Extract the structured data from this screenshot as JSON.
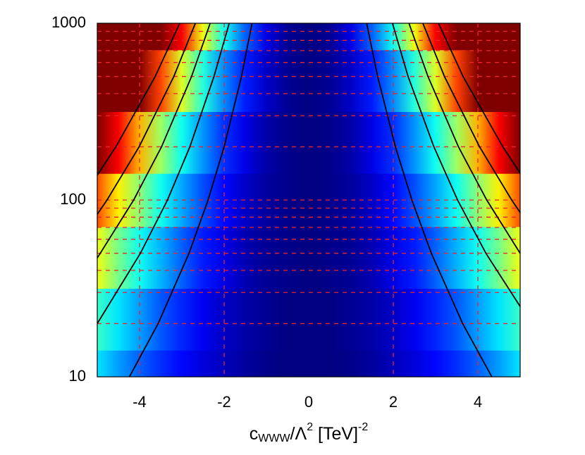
{
  "chart_data": {
    "type": "heatmap",
    "xlabel": {
      "base": "c",
      "sub": "WWW",
      "mid": "/Λ",
      "sup": "2",
      "tail": " [TeV]",
      "sup2": "-2"
    },
    "xlim": [
      -5,
      5
    ],
    "ylim": [
      10,
      1000
    ],
    "ylog": true,
    "xticks": [
      -4,
      -2,
      0,
      2,
      4
    ],
    "yticks": [
      10,
      100,
      1000
    ],
    "xgrid": [
      -4,
      -2,
      2,
      4
    ],
    "ygrid": [
      20,
      30,
      40,
      50,
      60,
      70,
      80,
      90,
      100,
      200,
      300,
      400,
      500,
      600,
      700,
      800,
      900
    ],
    "grid_color": "#e8262b",
    "colormap": "jet",
    "heatmap": {
      "x": [
        -5,
        -4.5,
        -4,
        -3.5,
        -3,
        -2.5,
        -2,
        -1.5,
        -1,
        -0.5,
        0,
        0.5,
        1,
        1.5,
        2,
        2.5,
        3,
        3.5,
        4,
        4.5,
        5
      ],
      "y": [
        10,
        20,
        50,
        100,
        200,
        500,
        1000
      ],
      "z": [
        [
          0.35,
          0.28,
          0.22,
          0.17,
          0.13,
          0.09,
          0.06,
          0.03,
          0.01,
          0,
          0,
          0,
          0.01,
          0.03,
          0.06,
          0.09,
          0.13,
          0.17,
          0.22,
          0.28,
          0.35
        ],
        [
          0.43,
          0.35,
          0.28,
          0.21,
          0.16,
          0.11,
          0.07,
          0.04,
          0.02,
          0,
          0,
          0,
          0.02,
          0.04,
          0.07,
          0.11,
          0.16,
          0.21,
          0.28,
          0.35,
          0.43
        ],
        [
          0.61,
          0.49,
          0.39,
          0.3,
          0.22,
          0.15,
          0.1,
          0.05,
          0.02,
          0.01,
          0,
          0.01,
          0.02,
          0.05,
          0.1,
          0.15,
          0.22,
          0.3,
          0.39,
          0.49,
          0.61
        ],
        [
          0.8,
          0.64,
          0.51,
          0.39,
          0.29,
          0.2,
          0.13,
          0.07,
          0.03,
          0.01,
          0,
          0.01,
          0.03,
          0.07,
          0.13,
          0.2,
          0.29,
          0.39,
          0.51,
          0.64,
          0.8
        ],
        [
          1,
          0.88,
          0.7,
          0.53,
          0.39,
          0.27,
          0.17,
          0.1,
          0.04,
          0.01,
          0,
          0.01,
          0.04,
          0.1,
          0.17,
          0.27,
          0.39,
          0.53,
          0.7,
          0.88,
          1
        ],
        [
          1,
          1,
          1,
          0.81,
          0.59,
          0.41,
          0.26,
          0.15,
          0.07,
          0.02,
          0,
          0.02,
          0.07,
          0.15,
          0.26,
          0.41,
          0.59,
          0.81,
          1,
          1,
          1
        ],
        [
          1,
          1,
          1,
          1,
          0.88,
          0.61,
          0.39,
          0.22,
          0.1,
          0.02,
          0,
          0.02,
          0.1,
          0.22,
          0.39,
          0.61,
          0.88,
          1,
          1,
          1,
          1
        ]
      ]
    },
    "contour_color": "#000000",
    "contours": [
      {
        "x": [
          -1.34,
          -1.59,
          -2.0,
          -2.38,
          -2.83,
          -3.56,
          -4.24
        ],
        "y": [
          1000,
          500,
          200,
          100,
          50,
          20,
          10
        ]
      },
      {
        "x": [
          -1.88,
          -2.24,
          -2.81,
          -3.34,
          -3.98,
          -5
        ],
        "y": [
          1000,
          500,
          200,
          100,
          50,
          20
        ]
      },
      {
        "x": [
          -2.33,
          -2.77,
          -3.48,
          -4.14,
          -5
        ],
        "y": [
          1000,
          500,
          200,
          100,
          47
        ]
      },
      {
        "x": [
          -2.68,
          -3.19,
          -4.01,
          -4.77,
          -5
        ],
        "y": [
          1000,
          500,
          200,
          100,
          83
        ]
      },
      {
        "x": [
          -3.05,
          -3.63,
          -4.56,
          -5
        ],
        "y": [
          1000,
          500,
          200,
          138
        ]
      },
      {
        "x": [
          1.37,
          1.63,
          2.05,
          2.44,
          2.9,
          3.64,
          4.33
        ],
        "y": [
          1000,
          500,
          200,
          100,
          50,
          20,
          10
        ]
      },
      {
        "x": [
          1.98,
          2.35,
          2.96,
          3.52,
          4.19,
          5
        ],
        "y": [
          1000,
          500,
          200,
          100,
          50,
          25
        ]
      },
      {
        "x": [
          2.37,
          2.82,
          3.54,
          4.21,
          5
        ],
        "y": [
          1000,
          500,
          200,
          100,
          50
        ]
      },
      {
        "x": [
          2.7,
          3.21,
          4.04,
          4.8,
          5
        ],
        "y": [
          1000,
          500,
          200,
          100,
          85
        ]
      },
      {
        "x": [
          3.07,
          3.65,
          4.59,
          5
        ],
        "y": [
          1000,
          500,
          200,
          142
        ]
      }
    ]
  }
}
